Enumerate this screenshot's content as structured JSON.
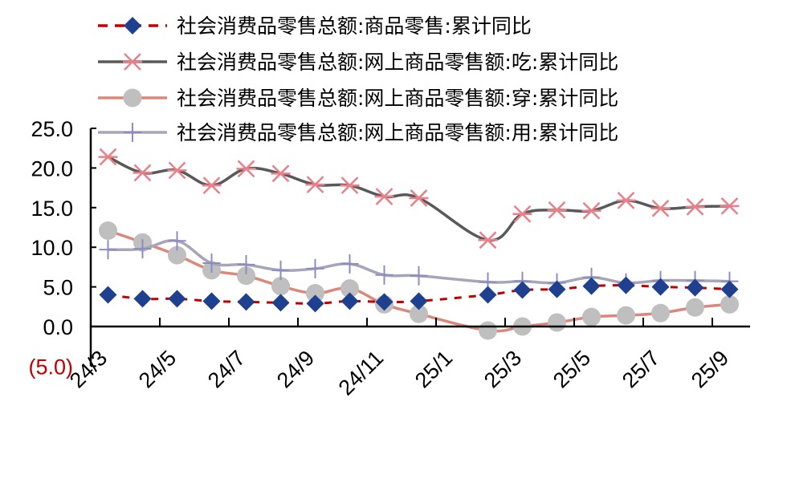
{
  "chart_data": {
    "type": "line",
    "title": "",
    "xlabel": "",
    "ylabel": "",
    "ylim": [
      -5,
      25
    ],
    "yticks": [
      "(5.0)",
      "0.0",
      "5.0",
      "10.0",
      "15.0",
      "20.0",
      "25.0"
    ],
    "ytick_values": [
      -5,
      0,
      5,
      10,
      15,
      20,
      25
    ],
    "grid": false,
    "legend_position": "top",
    "categories": [
      "24/3",
      "24/4",
      "24/5",
      "24/6",
      "24/7",
      "24/8",
      "24/9",
      "24/10",
      "24/11",
      "24/12",
      "25/1",
      "25/2",
      "25/3",
      "25/4",
      "25/5",
      "25/6",
      "25/7",
      "25/8",
      "25/9"
    ],
    "xtick_labels": [
      "24/3",
      "24/5",
      "24/7",
      "24/9",
      "24/11",
      "25/1",
      "25/3",
      "25/5",
      "25/7",
      "25/9"
    ],
    "series": [
      {
        "name": "社会消费品零售总额:商品零售:累计同比",
        "color": "#c00000",
        "marker": "diamond",
        "marker_color": "#1f3f8f",
        "line_style": "dashed",
        "values": [
          4.0,
          3.5,
          3.5,
          3.2,
          3.1,
          3.0,
          2.9,
          3.2,
          3.1,
          3.2,
          null,
          4.0,
          4.6,
          4.7,
          5.1,
          5.2,
          5.0,
          4.9,
          4.7
        ]
      },
      {
        "name": "社会消费品零售总额:网上商品零售额:吃:累计同比",
        "color": "#595959",
        "marker": "asterisk",
        "marker_color": "#e8808a",
        "line_style": "solid",
        "values": [
          21.4,
          19.4,
          19.7,
          17.8,
          19.9,
          19.3,
          17.9,
          17.8,
          16.4,
          16.2,
          null,
          10.9,
          14.2,
          14.7,
          14.6,
          15.9,
          14.9,
          15.1,
          15.2
        ]
      },
      {
        "name": "社会消费品零售总额:网上商品零售额:穿:累计同比",
        "color": "#d9887a",
        "marker": "circle",
        "marker_color": "#bfbfbf",
        "line_style": "solid",
        "values": [
          12.1,
          10.6,
          9.0,
          7.1,
          6.4,
          5.1,
          4.2,
          4.8,
          2.8,
          1.6,
          null,
          -0.5,
          0.0,
          0.5,
          1.2,
          1.4,
          1.7,
          2.4,
          2.8
        ]
      },
      {
        "name": "社会消费品零售总额:网上商品零售额:用:累计同比",
        "color": "#a6a6b8",
        "marker": "plus",
        "marker_color": "#8c8cc0",
        "line_style": "solid",
        "values": [
          9.7,
          9.8,
          10.8,
          8.0,
          7.8,
          7.1,
          7.3,
          7.9,
          6.5,
          6.4,
          null,
          5.6,
          5.7,
          5.5,
          6.2,
          5.5,
          5.8,
          5.8,
          5.7
        ]
      }
    ]
  }
}
